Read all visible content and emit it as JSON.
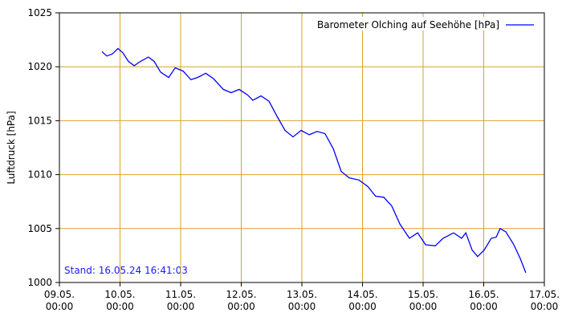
{
  "chart_data": {
    "type": "line",
    "ylabel": "Luftdruck [hPa]",
    "annotation": "Stand: 16.05.24 16:41:03",
    "legend": "top-right",
    "grid": true,
    "grid_color": "#d9a227",
    "ylim": [
      1000,
      1025
    ],
    "yticks": [
      1000,
      1005,
      1010,
      1015,
      1020,
      1025
    ],
    "xlim": [
      "09.05.\n00:00",
      "17.05.\n00:00"
    ],
    "xticks": [
      "09.05.\n00:00",
      "10.05.\n00:00",
      "11.05.\n00:00",
      "12.05.\n00:00",
      "13.05.\n00:00",
      "14.05.\n00:00",
      "15.05.\n00:00",
      "16.05.\n00:00",
      "17.05.\n00:00"
    ],
    "x": [
      "09.05. 16:50",
      "09.05. 18:45",
      "09.05. 21:00",
      "09.05. 23:10",
      "10.05. 01:05",
      "10.05. 03:20",
      "10.05. 05:35",
      "10.05. 08:05",
      "10.05. 11:15",
      "10.05. 13:30",
      "10.05. 16:05",
      "10.05. 19:15",
      "10.05. 21:50",
      "11.05. 01:00",
      "11.05. 04:05",
      "11.05. 06:40",
      "11.05. 09:55",
      "11.05. 13:00",
      "11.05. 16:55",
      "11.05. 20:00",
      "11.05. 23:10",
      "12.05. 02:25",
      "12.05. 04:35",
      "12.05. 07:50",
      "12.05. 11:00",
      "12.05. 14:10",
      "12.05. 17:20",
      "12.05. 20:30",
      "12.05. 23:40",
      "13.05. 02:55",
      "13.05. 06:00",
      "13.05. 09:10",
      "13.05. 12:25",
      "13.05. 15:35",
      "13.05. 18:45",
      "13.05. 22:35",
      "14.05. 02:05",
      "14.05. 05:10",
      "14.05. 08:25",
      "14.05. 11:35",
      "14.05. 14:50",
      "14.05. 18:35",
      "14.05. 21:50",
      "15.05. 01:00",
      "15.05. 04:50",
      "15.05. 07:55",
      "15.05. 12:05",
      "15.05. 15:15",
      "15.05. 16:55",
      "15.05. 19:25",
      "15.05. 21:35",
      "16.05. 00:10",
      "16.05. 03:00",
      "16.05. 04:55",
      "16.05. 06:30",
      "16.05. 08:45",
      "16.05. 11:55",
      "16.05. 14:30",
      "16.05. 16:40"
    ],
    "series": [
      {
        "name": "Barometer Olching auf Seehöhe [hPa]",
        "color": "#0000ff",
        "values": [
          1021.4,
          1021.0,
          1021.2,
          1021.7,
          1021.3,
          1020.5,
          1020.1,
          1020.5,
          1020.9,
          1020.5,
          1019.5,
          1019.0,
          1019.9,
          1019.6,
          1018.8,
          1019.0,
          1019.4,
          1018.9,
          1017.9,
          1017.6,
          1017.9,
          1017.4,
          1016.9,
          1017.3,
          1016.8,
          1015.4,
          1014.1,
          1013.5,
          1014.1,
          1013.7,
          1014.0,
          1013.8,
          1012.4,
          1010.3,
          1009.7,
          1009.5,
          1008.9,
          1008.0,
          1007.9,
          1007.1,
          1005.4,
          1004.1,
          1004.6,
          1003.5,
          1003.4,
          1004.1,
          1004.6,
          1004.1,
          1004.6,
          1003.0,
          1002.4,
          1003.0,
          1004.1,
          1004.2,
          1005.0,
          1004.7,
          1003.5,
          1002.2,
          1000.9
        ]
      }
    ]
  }
}
